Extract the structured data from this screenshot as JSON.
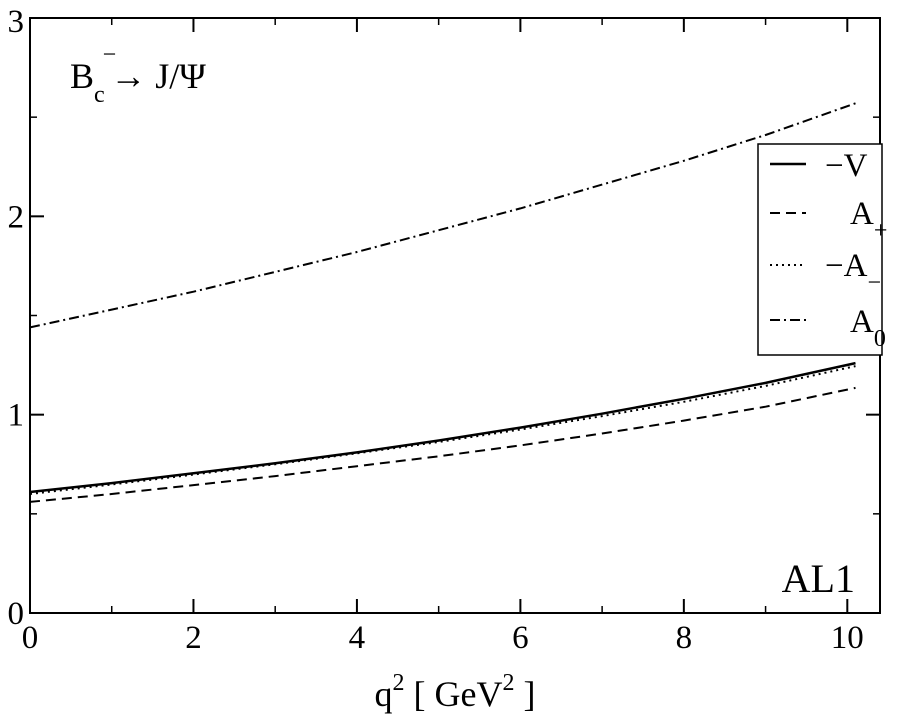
{
  "chart_data": {
    "type": "line",
    "xlim": [
      0,
      10.4
    ],
    "ylim": [
      0,
      3
    ],
    "x_ticks": [
      0,
      2,
      4,
      6,
      8,
      10
    ],
    "y_ticks": [
      0,
      1,
      2,
      3
    ],
    "x_tick_labels": [
      "0",
      "2",
      "4",
      "6",
      "8",
      "10"
    ],
    "y_tick_labels": [
      "0",
      "1",
      "2",
      "3"
    ],
    "xlabel": {
      "base": "q",
      "sup": "2",
      "mid": " [ GeV",
      "sup2": "2",
      "end": " ]"
    },
    "ylabel": "",
    "grid": false,
    "legend_position": "upper-right",
    "annotations": {
      "process": {
        "B": "B",
        "sub": "c",
        "sup": "−",
        "rest": "→ J/Ψ"
      },
      "model": "AL1"
    },
    "series": [
      {
        "name": "−V",
        "style": "solid",
        "x": [
          0,
          1,
          2,
          3,
          4,
          5,
          6,
          7,
          8,
          9,
          10.1
        ],
        "y": [
          0.61,
          0.655,
          0.705,
          0.755,
          0.81,
          0.87,
          0.935,
          1.005,
          1.08,
          1.16,
          1.26
        ]
      },
      {
        "name": "A+",
        "name_base": "A",
        "name_sub": "+",
        "style": "dashed",
        "x": [
          0,
          1,
          2,
          3,
          4,
          5,
          6,
          7,
          8,
          9,
          10.1
        ],
        "y": [
          0.56,
          0.6,
          0.645,
          0.69,
          0.74,
          0.79,
          0.845,
          0.905,
          0.97,
          1.04,
          1.135
        ]
      },
      {
        "name": "−A−",
        "name_base": "−A",
        "name_sub": "−",
        "style": "dotted",
        "x": [
          0,
          1,
          2,
          3,
          4,
          5,
          6,
          7,
          8,
          9,
          10.1
        ],
        "y": [
          0.6,
          0.648,
          0.698,
          0.75,
          0.805,
          0.862,
          0.925,
          0.993,
          1.065,
          1.145,
          1.245
        ]
      },
      {
        "name": "A0",
        "name_base": "A",
        "name_sub": "0",
        "style": "dashdot",
        "x": [
          0,
          1,
          2,
          3,
          4,
          5,
          6,
          7,
          8,
          9,
          10.1
        ],
        "y": [
          1.44,
          1.53,
          1.62,
          1.72,
          1.82,
          1.93,
          2.04,
          2.16,
          2.28,
          2.41,
          2.57
        ]
      }
    ]
  }
}
